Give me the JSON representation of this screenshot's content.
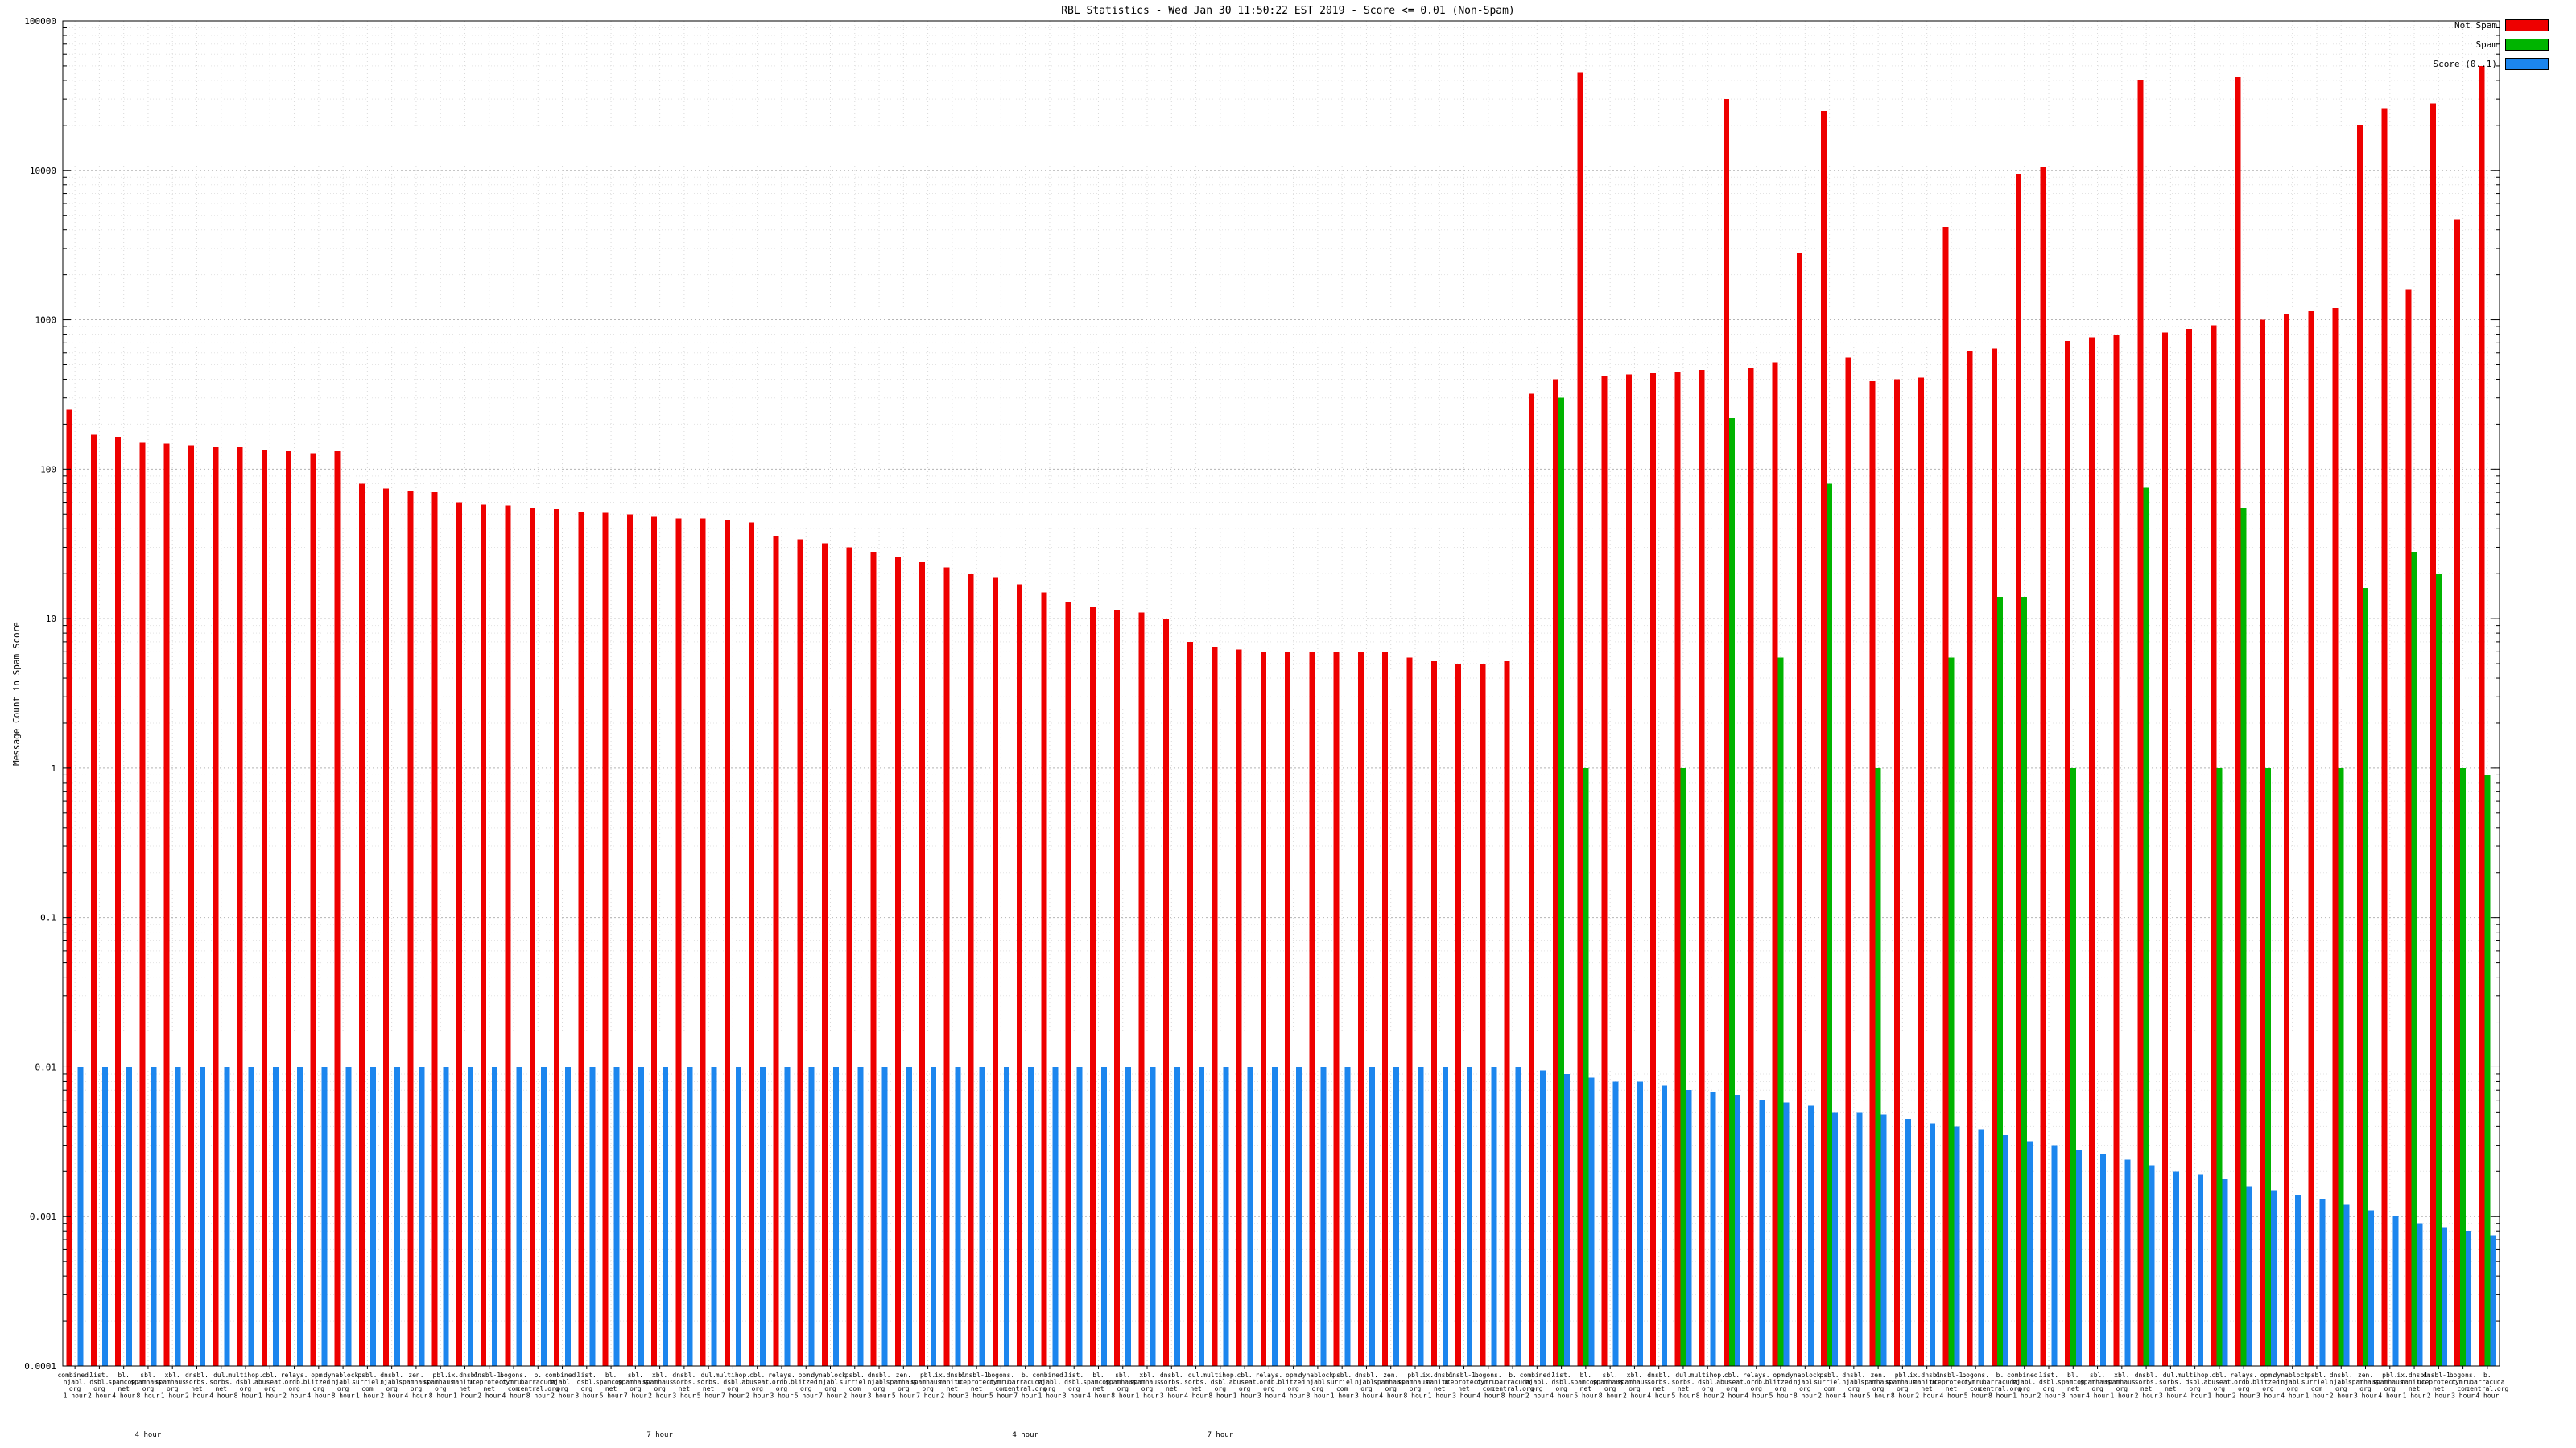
{
  "window": {
    "title": "RBL Statistics - Wed Jan 30 11:50:22 EST 2019 - Score <= 0.01 (Non-Spam)"
  },
  "chart_data": {
    "type": "bar",
    "title": "RBL Statistics - Wed Jan 30 11:50:22 EST 2019 - Score <= 0.01 (Non-Spam)",
    "xlabel": "",
    "ylabel": "Message Count in Spam Score",
    "log_y": true,
    "ylim": [
      0.0001,
      100000
    ],
    "yticks": [
      "0.0001",
      "0.001",
      "0.01",
      "0.1",
      "1",
      "10",
      "100",
      "1000",
      "10000",
      "100000"
    ],
    "grid": true,
    "legend_position": "top-right",
    "legend": [
      {
        "label": "Not Spam",
        "color": "#ee0000"
      },
      {
        "label": "Spam",
        "color": "#00b400"
      },
      {
        "label": "Score (0..1)",
        "color": "#1c86ee"
      }
    ],
    "group_labels": [
      {
        "index": 3,
        "text": "4 hour"
      },
      {
        "index": 24,
        "text": "7 hour"
      },
      {
        "index": 39,
        "text": "4 hour"
      },
      {
        "index": 47,
        "text": "7 hour"
      }
    ],
    "categories": [
      "combined.\nnjabl.\norg\n1 hour",
      "list.\ndsbl.\norg\n2 hour",
      "bl.\nspamcop.\nnet\n4 hour",
      "sbl.\nspamhaus.\norg\n8 hour",
      "xbl.\nspamhaus.\norg\n1 hour",
      "dnsbl.\nsorbs.\nnet\n2 hour",
      "dul.\nsorbs.\nnet\n4 hour",
      "multihop.\ndsbl.\norg\n8 hour",
      "cbl.\nabuseat.\norg\n1 hour",
      "relays.\nordb.\norg\n2 hour",
      "opm.\nblitzed.\norg\n4 hour",
      "dynablock.\nnjabl.\norg\n8 hour",
      "psbl.\nsurriel.\ncom\n1 hour",
      "dnsbl.\nnjabl.\norg\n2 hour",
      "zen.\nspamhaus.\norg\n4 hour",
      "pbl.\nspamhaus.\norg\n8 hour",
      "ix.dnsbl.\nmanitu.\nnet\n1 hour",
      "dnsbl-1.\nuceprotect.\nnet\n2 hour",
      "bogons.\ncymru.\ncom\n4 hour",
      "b.\nbarracuda\ncentral.org\n8 hour",
      "combined.\nnjabl.\norg\n2 hour",
      "list.\ndsbl.\norg\n3 hour",
      "bl.\nspamcop.\nnet\n5 hour",
      "sbl.\nspamhaus.\norg\n7 hour",
      "xbl.\nspamhaus.\norg\n2 hour",
      "dnsbl.\nsorbs.\nnet\n3 hour",
      "dul.\nsorbs.\nnet\n5 hour",
      "multihop.\ndsbl.\norg\n7 hour",
      "cbl.\nabuseat.\norg\n2 hour",
      "relays.\nordb.\norg\n3 hour",
      "opm.\nblitzed.\norg\n5 hour",
      "dynablock.\nnjabl.\norg\n7 hour",
      "psbl.\nsurriel.\ncom\n2 hour",
      "dnsbl.\nnjabl.\norg\n3 hour",
      "zen.\nspamhaus.\norg\n5 hour",
      "pbl.\nspamhaus.\norg\n7 hour",
      "ix.dnsbl.\nmanitu.\nnet\n2 hour",
      "dnsbl-1.\nuceprotect.\nnet\n3 hour",
      "bogons.\ncymru.\ncom\n5 hour",
      "b.\nbarracuda\ncentral.org\n7 hour",
      "combined.\nnjabl.\norg\n1 hour",
      "list.\ndsbl.\norg\n3 hour",
      "bl.\nspamcop.\nnet\n4 hour",
      "sbl.\nspamhaus.\norg\n8 hour",
      "xbl.\nspamhaus.\norg\n1 hour",
      "dnsbl.\nsorbs.\nnet\n3 hour",
      "dul.\nsorbs.\nnet\n4 hour",
      "multihop.\ndsbl.\norg\n8 hour",
      "cbl.\nabuseat.\norg\n1 hour",
      "relays.\nordb.\norg\n3 hour",
      "opm.\nblitzed.\norg\n4 hour",
      "dynablock.\nnjabl.\norg\n8 hour",
      "psbl.\nsurriel.\ncom\n1 hour",
      "dnsbl.\nnjabl.\norg\n3 hour",
      "zen.\nspamhaus.\norg\n4 hour",
      "pbl.\nspamhaus.\norg\n8 hour",
      "ix.dnsbl.\nmanitu.\nnet\n1 hour",
      "dnsbl-1.\nuceprotect.\nnet\n3 hour",
      "bogons.\ncymru.\ncom\n4 hour",
      "b.\nbarracuda\ncentral.org\n8 hour",
      "combined.\nnjabl.\norg\n2 hour",
      "list.\ndsbl.\norg\n4 hour",
      "bl.\nspamcop.\nnet\n5 hour",
      "sbl.\nspamhaus.\norg\n8 hour",
      "xbl.\nspamhaus.\norg\n2 hour",
      "dnsbl.\nsorbs.\nnet\n4 hour",
      "dul.\nsorbs.\nnet\n5 hour",
      "multihop.\ndsbl.\norg\n8 hour",
      "cbl.\nabuseat.\norg\n2 hour",
      "relays.\nordb.\norg\n4 hour",
      "opm.\nblitzed.\norg\n5 hour",
      "dynablock.\nnjabl.\norg\n8 hour",
      "psbl.\nsurriel.\ncom\n2 hour",
      "dnsbl.\nnjabl.\norg\n4 hour",
      "zen.\nspamhaus.\norg\n5 hour",
      "pbl.\nspamhaus.\norg\n8 hour",
      "ix.dnsbl.\nmanitu.\nnet\n2 hour",
      "dnsbl-1.\nuceprotect.\nnet\n4 hour",
      "bogons.\ncymru.\ncom\n5 hour",
      "b.\nbarracuda\ncentral.org\n8 hour",
      "combined.\nnjabl.\norg\n1 hour",
      "list.\ndsbl.\norg\n2 hour",
      "bl.\nspamcop.\nnet\n3 hour",
      "sbl.\nspamhaus.\norg\n4 hour",
      "xbl.\nspamhaus.\norg\n1 hour",
      "dnsbl.\nsorbs.\nnet\n2 hour",
      "dul.\nsorbs.\nnet\n3 hour",
      "multihop.\ndsbl.\norg\n4 hour",
      "cbl.\nabuseat.\norg\n1 hour",
      "relays.\nordb.\norg\n2 hour",
      "opm.\nblitzed.\norg\n3 hour",
      "dynablock.\nnjabl.\norg\n4 hour",
      "psbl.\nsurriel.\ncom\n1 hour",
      "dnsbl.\nnjabl.\norg\n2 hour",
      "zen.\nspamhaus.\norg\n3 hour",
      "pbl.\nspamhaus.\norg\n4 hour",
      "ix.dnsbl.\nmanitu.\nnet\n1 hour",
      "dnsbl-1.\nuceprotect.\nnet\n2 hour",
      "bogons.\ncymru.\ncom\n3 hour",
      "b.\nbarracuda\ncentral.org\n4 hour"
    ],
    "series": [
      {
        "name": "Not Spam",
        "color": "#ee0000",
        "values": [
          250,
          170,
          165,
          150,
          148,
          145,
          140,
          140,
          135,
          132,
          128,
          132,
          80,
          74,
          72,
          70,
          60,
          58,
          57,
          55,
          54,
          52,
          51,
          50,
          48,
          47,
          47,
          46,
          44,
          36,
          34,
          32,
          30,
          28,
          26,
          24,
          22,
          20,
          19,
          17,
          15,
          13,
          12,
          11.5,
          11,
          10,
          7,
          6.5,
          6.2,
          6,
          6,
          6,
          6,
          6,
          6,
          5.5,
          5.2,
          5,
          5,
          5.2,
          320,
          400,
          45000,
          420,
          430,
          440,
          450,
          460,
          30000,
          480,
          520,
          2800,
          25000,
          560,
          390,
          400,
          410,
          4200,
          620,
          640,
          9500,
          10500,
          720,
          760,
          790,
          40000,
          820,
          870,
          920,
          42000,
          1000,
          1100,
          1150,
          1200,
          20000,
          26000,
          1600,
          28000,
          4700,
          50000
        ]
      },
      {
        "name": "Spam",
        "color": "#00b400",
        "values": [
          0,
          0,
          0,
          0,
          0,
          0,
          0,
          0,
          0,
          0,
          0,
          0,
          0,
          0,
          0,
          0,
          0,
          0,
          0,
          0,
          0,
          0,
          0,
          0,
          0,
          0,
          0,
          0,
          0,
          0,
          0,
          0,
          0,
          0,
          0,
          0,
          0,
          0,
          0,
          0,
          0,
          0,
          0,
          0,
          0,
          0,
          0,
          0,
          0,
          0,
          0,
          0,
          0,
          0,
          0,
          0,
          0,
          0,
          0,
          0,
          0,
          300,
          1,
          0,
          0,
          0,
          1,
          0,
          220,
          0,
          5.5,
          0,
          80,
          0,
          1,
          0,
          0,
          5.5,
          0,
          14,
          14,
          0,
          1,
          0,
          0,
          75,
          0,
          0,
          1,
          55,
          1,
          0,
          0,
          1,
          16,
          0,
          28,
          20,
          1,
          0.9
        ]
      },
      {
        "name": "Score (0..1)",
        "color": "#1c86ee",
        "values": [
          0.01,
          0.01,
          0.01,
          0.01,
          0.01,
          0.01,
          0.01,
          0.01,
          0.01,
          0.01,
          0.01,
          0.01,
          0.01,
          0.01,
          0.01,
          0.01,
          0.01,
          0.01,
          0.01,
          0.01,
          0.01,
          0.01,
          0.01,
          0.01,
          0.01,
          0.01,
          0.01,
          0.01,
          0.01,
          0.01,
          0.01,
          0.01,
          0.01,
          0.01,
          0.01,
          0.01,
          0.01,
          0.01,
          0.01,
          0.01,
          0.01,
          0.01,
          0.01,
          0.01,
          0.01,
          0.01,
          0.01,
          0.01,
          0.01,
          0.01,
          0.01,
          0.01,
          0.01,
          0.01,
          0.01,
          0.01,
          0.01,
          0.01,
          0.01,
          0.01,
          0.0095,
          0.009,
          0.0085,
          0.008,
          0.008,
          0.0075,
          0.007,
          0.0068,
          0.0065,
          0.006,
          0.0058,
          0.0055,
          0.005,
          0.005,
          0.0048,
          0.0045,
          0.0042,
          0.004,
          0.0038,
          0.0035,
          0.0032,
          0.003,
          0.0028,
          0.0026,
          0.0024,
          0.0022,
          0.002,
          0.0019,
          0.0018,
          0.0016,
          0.0015,
          0.0014,
          0.0013,
          0.0012,
          0.0011,
          0.001,
          0.0009,
          0.00085,
          0.0008,
          0.00075
        ]
      }
    ]
  }
}
